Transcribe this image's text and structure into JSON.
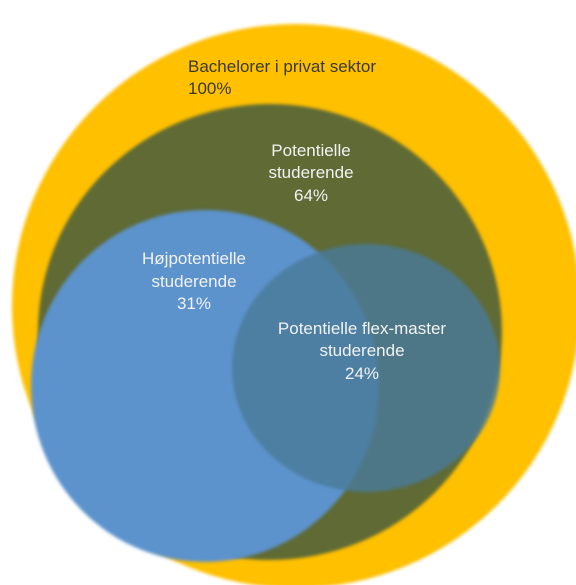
{
  "diagram": {
    "type": "nested-venn",
    "sets": [
      {
        "id": "bachelors",
        "lines": [
          "Bachelorer i privat sektor",
          "100%"
        ],
        "value": 100,
        "color": "#ffc000"
      },
      {
        "id": "potential",
        "lines": [
          "Potentielle",
          "studerende",
          "64%"
        ],
        "value": 64,
        "color": "#5f6b34"
      },
      {
        "id": "high-potential",
        "lines": [
          "Højpotentielle",
          "studerende",
          "31%"
        ],
        "value": 31,
        "color": "#5b93cd"
      },
      {
        "id": "flex-master",
        "lines": [
          "Potentielle flex-master",
          "studerende",
          "24%"
        ],
        "value": 24,
        "color": "#4a7a99"
      }
    ]
  }
}
